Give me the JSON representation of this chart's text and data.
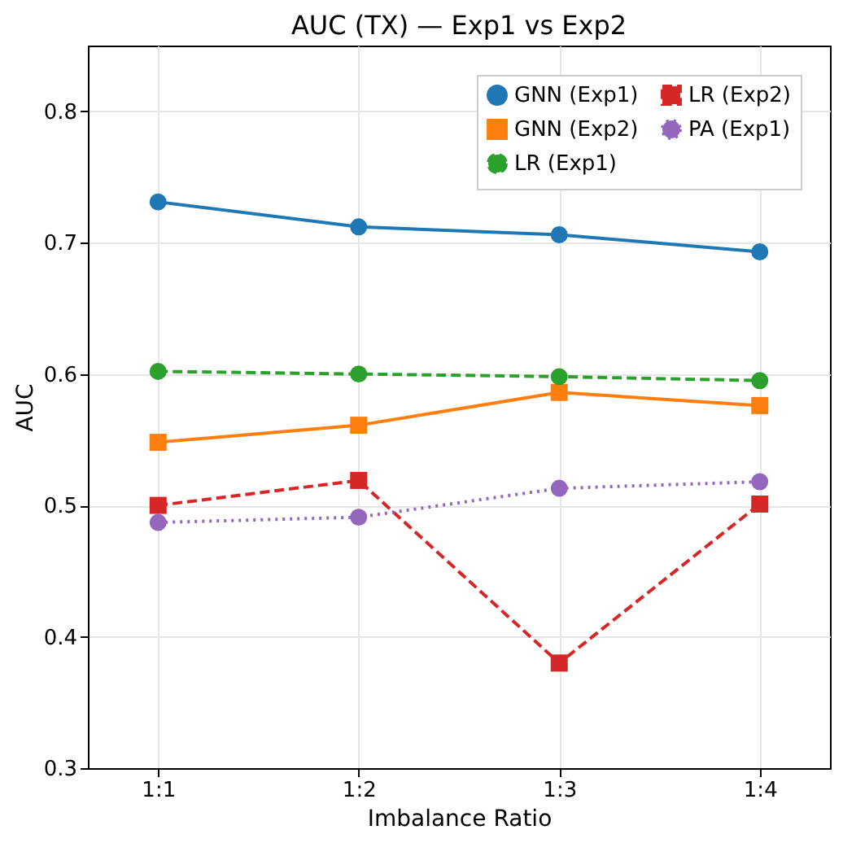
{
  "chart_data": {
    "type": "line",
    "title": "AUC (TX) — Exp1 vs Exp2",
    "xlabel": "Imbalance Ratio",
    "ylabel": "AUC",
    "categories": [
      "1:1",
      "1:2",
      "1:3",
      "1:4"
    ],
    "series": [
      {
        "name": "GNN (Exp1)",
        "color": "#1f77b4",
        "marker": "circle",
        "line_style": "solid",
        "values": [
          0.731,
          0.712,
          0.706,
          0.693
        ]
      },
      {
        "name": "GNN (Exp2)",
        "color": "#ff7f0e",
        "marker": "square",
        "line_style": "solid",
        "values": [
          0.548,
          0.561,
          0.586,
          0.576
        ]
      },
      {
        "name": "LR (Exp1)",
        "color": "#2ca02c",
        "marker": "circle",
        "line_style": "dashed",
        "values": [
          0.602,
          0.6,
          0.598,
          0.595
        ]
      },
      {
        "name": "LR (Exp2)",
        "color": "#d62728",
        "marker": "square",
        "line_style": "dashed",
        "values": [
          0.5,
          0.519,
          0.38,
          0.501
        ]
      },
      {
        "name": "PA (Exp1)",
        "color": "#9467bd",
        "marker": "circle",
        "line_style": "dotted",
        "values": [
          0.487,
          0.491,
          0.513,
          0.518
        ]
      }
    ],
    "ylim": [
      0.3,
      0.85
    ],
    "yticks": [
      0.3,
      0.4,
      0.5,
      0.6,
      0.7,
      0.8
    ],
    "grid": true,
    "legend": "top right"
  }
}
